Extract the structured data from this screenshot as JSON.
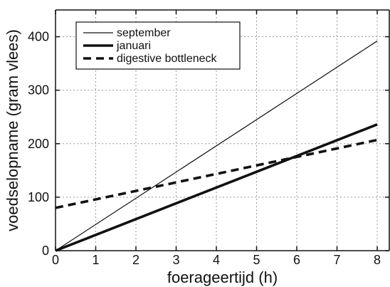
{
  "chart_data": {
    "type": "line",
    "title": "",
    "xlabel": "foerageertijd (h)",
    "ylabel": "voedselopname (gram vlees)",
    "xlim": [
      0,
      8.3
    ],
    "ylim": [
      0,
      450
    ],
    "x_ticks": [
      0,
      1,
      2,
      3,
      4,
      5,
      6,
      7,
      8
    ],
    "y_ticks": [
      0,
      100,
      200,
      300,
      400
    ],
    "grid": true,
    "legend_position": "top-left",
    "series": [
      {
        "name": "september",
        "style": "thin-solid",
        "color": "#111111",
        "x": [
          0,
          8
        ],
        "y": [
          0,
          392
        ]
      },
      {
        "name": "januari",
        "style": "thick-solid",
        "color": "#111111",
        "x": [
          0,
          8
        ],
        "y": [
          0,
          236
        ]
      },
      {
        "name": "digestive bottleneck",
        "style": "thick-dashed",
        "color": "#111111",
        "x": [
          0,
          8
        ],
        "y": [
          80,
          207
        ]
      }
    ]
  }
}
